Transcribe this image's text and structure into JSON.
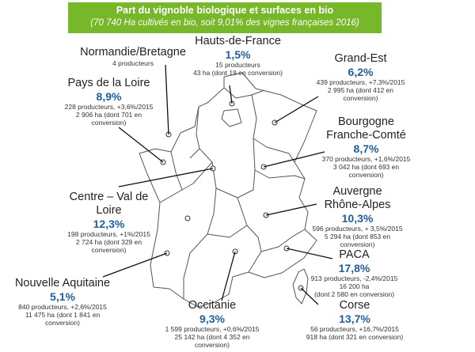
{
  "banner": {
    "title": "Part du vignoble biologique et surfaces en bio",
    "subtitle": "(70 740 Ha cultivés en bio, soit 9,01% des vignes françaises 2016)"
  },
  "regions": {
    "normandie": {
      "name": "Normandie/Bretagne",
      "pct": "",
      "details": [
        "4 producteurs"
      ]
    },
    "hdf": {
      "name": "Hauts-de-France",
      "pct": "1,5%",
      "details": [
        "15 producteurs",
        "43 ha (dont 19 en conversion)"
      ]
    },
    "grandest": {
      "name": "Grand-Est",
      "pct": "6,2%",
      "details": [
        "439 producteurs, +7,3%/2015",
        "2 995 ha (dont 412 en",
        "conversion)"
      ]
    },
    "pdl": {
      "name": "Pays de la Loire",
      "pct": "8,9%",
      "details": [
        "228 producteurs, +3,6%/2015",
        "2 906 ha (dont 701 en",
        "conversion)"
      ]
    },
    "bfc": {
      "name": "Bourgogne",
      "name2": "Franche-Comté",
      "pct": "8,7%",
      "details": [
        "370 producteurs, +1,6%/2015",
        "3 042 ha (dont 693 en",
        "conversion)"
      ]
    },
    "cvl": {
      "name": "Centre – Val de",
      "name2": "Loire",
      "pct": "12,3%",
      "details": [
        "198 producteurs, +1%/2015",
        "2 724 ha (dont 329 en",
        "conversion)"
      ]
    },
    "ara": {
      "name": "Auvergne",
      "name2": "Rhône-Alpes",
      "pct": "10,3%",
      "details": [
        "596 producteurs, + 3,5%/2015",
        "5 294 ha (dont 853 en",
        "conversion)"
      ]
    },
    "paca": {
      "name": "PACA",
      "pct": "17,8%",
      "details": [
        "913 producteurs, -2,4%/2015",
        "16 200 ha",
        "(dont 2 580 en conversion)"
      ]
    },
    "na": {
      "name": "Nouvelle Aquitaine",
      "pct": "5,1%",
      "details": [
        "840 producteurs, +2,6%/2015",
        "11 475 ha (dont 1 841 en",
        "conversion)"
      ]
    },
    "occ": {
      "name": "Occitanie",
      "pct": "9,3%",
      "details": [
        "1 599 producteurs, +0,6%/2015",
        "25 142 ha (dont 4 352 en",
        "conversion)"
      ]
    },
    "corse": {
      "name": "Corse",
      "pct": "13,7%",
      "details": [
        "56 producteurs, +16,7%/2015",
        "918 ha (dont 321 en conversion)"
      ]
    }
  },
  "colors": {
    "banner": "#76b82a",
    "percent": "#1f5e9e",
    "map_stroke": "#555555"
  }
}
